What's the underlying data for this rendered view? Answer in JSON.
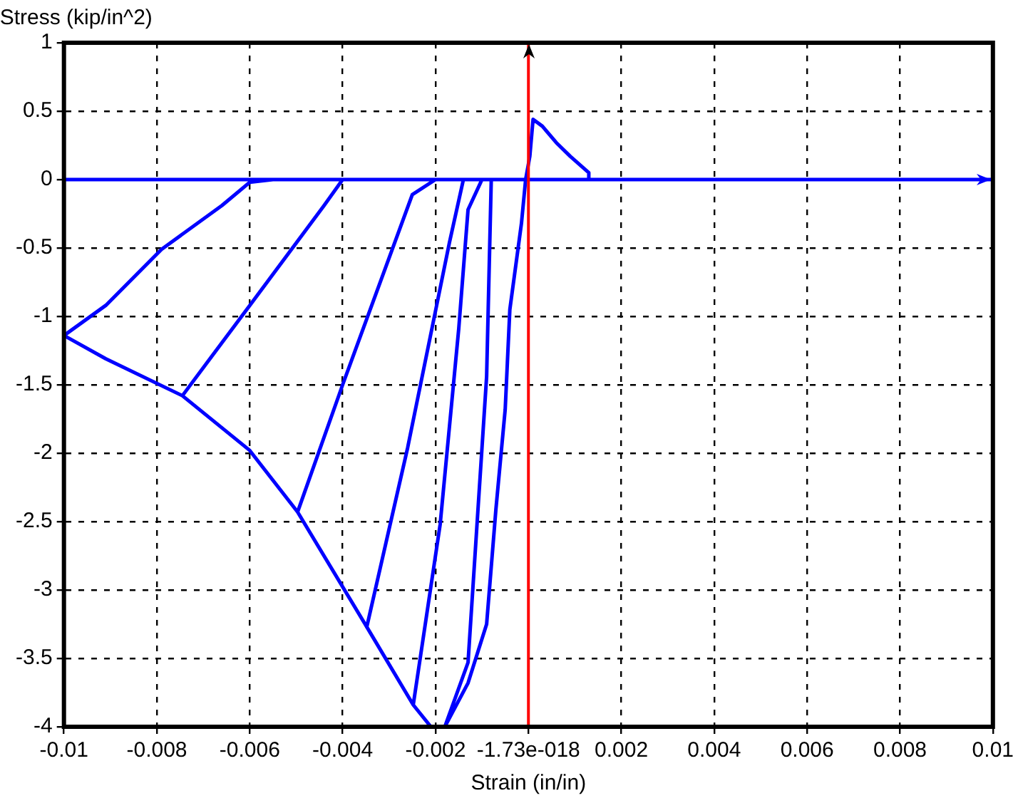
{
  "chart_data": {
    "type": "line",
    "xlabel": "Strain (in/in)",
    "ylabel": "Stress (kip/in^2)",
    "xlim": [
      -0.01,
      0.01
    ],
    "xticks": [
      -0.01,
      -0.008,
      -0.006,
      -0.004,
      -0.002,
      {
        "value": 0,
        "label": "-1.73e-018"
      },
      0.002,
      0.004,
      0.006,
      0.008,
      0.01
    ],
    "ylim": [
      -4,
      1
    ],
    "yticks": [
      -4,
      -3.5,
      -3,
      -2.5,
      -2,
      -1.5,
      -1,
      -0.5,
      0,
      0.5,
      1
    ],
    "grid": true,
    "marker": "none",
    "line_style": "solid",
    "ref_lines": [
      {
        "axis": "x",
        "value": 0,
        "color": "#ff0000"
      }
    ],
    "series": [
      {
        "color": "#0000ff",
        "x": [
          -0.01,
          0.01,
          null,
          -0.01,
          -0.0091,
          -0.00745,
          -0.006,
          -0.00497,
          -0.00348,
          -0.00248,
          -0.0021,
          -0.0018,
          -0.0013,
          -0.0009,
          -0.0007,
          -0.0005,
          -0.0004,
          -0.00015,
          -6e-05,
          3e-05,
          0.0001,
          0.0003,
          0.0006,
          0.0009,
          0.0013,
          0.0013,
          null,
          -0.01,
          -0.0091,
          -0.0079,
          -0.0066,
          -0.006,
          -0.0055,
          null,
          -0.00745,
          -0.006,
          -0.0044,
          -0.004,
          null,
          -0.00497,
          -0.004,
          -0.0025,
          -0.002,
          null,
          -0.00348,
          -0.0026,
          -0.0017,
          -0.0014,
          null,
          -0.00248,
          -0.0019,
          -0.0015,
          -0.0013,
          -0.001,
          null,
          -0.0008,
          -0.0009,
          -0.0013,
          -0.0018
        ],
        "values": [
          0,
          0,
          null,
          -1.14,
          -1.31,
          -1.58,
          -1.98,
          -2.43,
          -3.27,
          -3.84,
          -4,
          -4,
          -3.68,
          -3.25,
          -2.41,
          -1.68,
          -0.95,
          -0.32,
          0,
          0.17,
          0.44,
          0.39,
          0.27,
          0.17,
          0.05,
          0,
          null,
          -1.14,
          -0.92,
          -0.51,
          -0.19,
          -0.02,
          0,
          null,
          -1.58,
          -0.92,
          -0.19,
          0,
          null,
          -2.43,
          -1.5,
          -0.11,
          0,
          null,
          -3.27,
          -1.96,
          -0.46,
          0,
          null,
          -3.84,
          -2.52,
          -1.09,
          -0.22,
          0,
          null,
          0,
          -1.44,
          -3.53,
          -4
        ]
      }
    ]
  }
}
